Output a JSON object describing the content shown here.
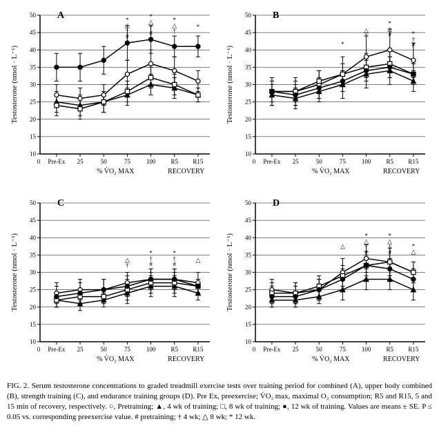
{
  "figure": {
    "caption_prefix": "FIG. 2.",
    "caption_text": "Serum testosterone concentrations to graded treadmill exercise tests over training period for combined (A), upper body combined (B), strength training (C), and endurance training groups (D). Pre Ex, preexercise; V̇O₂ max, maximal O₂ consumption; R5 and R15, 5 and 15 min of recovery, respectively. ○, Pretraining; ▲, 4 wk of training; □, 8 wk of training; ●, 12 wk of training. Values are means ± SE. P ≤ 0.05 vs. corresponding preexercise value. # pretraining; † 4 wk; △ 8 wk; * 12 wk."
  },
  "chart_common": {
    "type": "line",
    "ylabel": "Testosterone (nmol · L⁻¹)",
    "ylim": [
      10,
      50
    ],
    "yticks": [
      10,
      15,
      20,
      25,
      30,
      35,
      40,
      45,
      50
    ],
    "x_categories": [
      "Pre-Ex",
      "25",
      "50",
      "75",
      "100",
      "R5",
      "R15"
    ],
    "x_origin_label": "0",
    "xlabel_left": "% V̇O₂ MAX",
    "xlabel_right": "RECOVERY",
    "background_color": "#ffffff",
    "grid_color": "#000000",
    "grid_width": 0.5,
    "axis_color": "#000000",
    "tick_fontsize": 9,
    "label_fontsize": 11,
    "panel_label_fontsize": 14,
    "panel_label_weight": "bold",
    "line_width": 1.5,
    "marker_size": 5,
    "error_cap": 3
  },
  "series_style": {
    "pre": {
      "marker": "circle",
      "fill": "#ffffff",
      "stroke": "#000000",
      "label": "Pretraining"
    },
    "wk4": {
      "marker": "triangle",
      "fill": "#000000",
      "stroke": "#000000",
      "label": "4 wk"
    },
    "wk8": {
      "marker": "square",
      "fill": "#ffffff",
      "stroke": "#000000",
      "label": "8 wk"
    },
    "wk12": {
      "marker": "circle",
      "fill": "#000000",
      "stroke": "#000000",
      "label": "12 wk"
    }
  },
  "panels": {
    "A": {
      "label": "A",
      "series": {
        "pre": {
          "y": [
            27,
            26,
            27,
            33,
            36,
            34,
            31
          ],
          "err": [
            3,
            3,
            3,
            4,
            4,
            4,
            3
          ]
        },
        "wk4": {
          "y": [
            25,
            24,
            25,
            27,
            30,
            29,
            27
          ],
          "err": [
            3,
            3,
            3,
            3,
            3,
            3,
            2
          ]
        },
        "wk8": {
          "y": [
            24,
            23,
            25,
            28,
            32,
            30,
            27
          ],
          "err": [
            3,
            3,
            3,
            3,
            3,
            3,
            2
          ]
        },
        "wk12": {
          "y": [
            35,
            35,
            37,
            42,
            43,
            41,
            41
          ],
          "err": [
            4,
            4,
            4,
            5,
            4,
            3,
            3
          ]
        }
      },
      "sig": [
        {
          "xi": 3,
          "y": 48,
          "text": "*△†#"
        },
        {
          "xi": 4,
          "y": 49,
          "text": "*△†#"
        },
        {
          "xi": 5,
          "y": 48,
          "text": "*△†"
        },
        {
          "xi": 6,
          "y": 46,
          "text": "*"
        }
      ]
    },
    "B": {
      "label": "B",
      "series": {
        "pre": {
          "y": [
            28,
            28,
            30,
            33,
            38,
            40,
            37
          ],
          "err": [
            4,
            4,
            4,
            5,
            6,
            6,
            5
          ]
        },
        "wk4": {
          "y": [
            27,
            26,
            28,
            30,
            33,
            34,
            31
          ],
          "err": [
            3,
            3,
            3,
            4,
            4,
            4,
            3
          ]
        },
        "wk8": {
          "y": [
            28,
            28,
            31,
            33,
            35,
            36,
            33
          ],
          "err": [
            3,
            3,
            3,
            3,
            4,
            4,
            3
          ]
        },
        "wk12": {
          "y": [
            28,
            27,
            29,
            31,
            34,
            35,
            33
          ],
          "err": [
            3,
            3,
            3,
            3,
            3,
            3,
            3
          ]
        }
      },
      "sig": [
        {
          "xi": 3,
          "y": 41,
          "text": "*"
        },
        {
          "xi": 4,
          "y": 45,
          "text": "△†"
        },
        {
          "xi": 5,
          "y": 47,
          "text": "*△#"
        },
        {
          "xi": 6,
          "y": 44,
          "text": "*†#"
        }
      ]
    },
    "C": {
      "label": "C",
      "series": {
        "pre": {
          "y": [
            24,
            25,
            25,
            27,
            28,
            28,
            27
          ],
          "err": [
            3,
            3,
            3,
            3,
            3,
            3,
            3
          ]
        },
        "wk4": {
          "y": [
            22,
            21,
            22,
            24,
            26,
            26,
            24
          ],
          "err": [
            2,
            2,
            2,
            3,
            3,
            3,
            2
          ]
        },
        "wk8": {
          "y": [
            22,
            23,
            23,
            25,
            27,
            27,
            26
          ],
          "err": [
            2,
            2,
            2,
            3,
            3,
            3,
            2
          ]
        },
        "wk12": {
          "y": [
            23,
            24,
            25,
            26,
            28,
            28,
            26
          ],
          "err": [
            3,
            3,
            3,
            3,
            3,
            3,
            2
          ]
        }
      },
      "sig": [
        {
          "xi": 3,
          "y": 33,
          "text": "△†"
        },
        {
          "xi": 4,
          "y": 35,
          "text": "*†#"
        },
        {
          "xi": 5,
          "y": 35,
          "text": "*†#"
        },
        {
          "xi": 6,
          "y": 33,
          "text": "△"
        }
      ]
    },
    "D": {
      "label": "D",
      "series": {
        "pre": {
          "y": [
            25,
            24,
            25,
            30,
            34,
            33,
            30
          ],
          "err": [
            3,
            3,
            3,
            4,
            4,
            4,
            3
          ]
        },
        "wk4": {
          "y": [
            22,
            22,
            23,
            25,
            28,
            28,
            25
          ],
          "err": [
            2,
            2,
            2,
            3,
            3,
            3,
            3
          ]
        },
        "wk8": {
          "y": [
            24,
            24,
            26,
            29,
            32,
            33,
            30
          ],
          "err": [
            3,
            3,
            3,
            3,
            4,
            4,
            3
          ]
        },
        "wk12": {
          "y": [
            23,
            23,
            25,
            28,
            32,
            31,
            28
          ],
          "err": [
            3,
            3,
            3,
            3,
            3,
            3,
            3
          ]
        }
      },
      "sig": [
        {
          "xi": 3,
          "y": 37,
          "text": "△"
        },
        {
          "xi": 4,
          "y": 40,
          "text": "*△†#"
        },
        {
          "xi": 5,
          "y": 40,
          "text": "*△†#"
        },
        {
          "xi": 6,
          "y": 37,
          "text": "*△"
        }
      ]
    }
  }
}
